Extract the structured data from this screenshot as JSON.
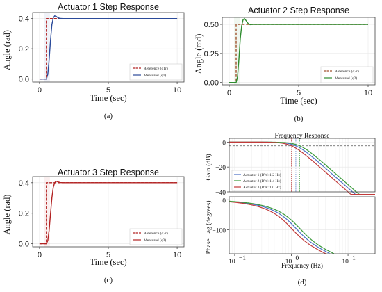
{
  "chart_data": [
    {
      "id": "a",
      "type": "line",
      "title": "Actuator 1 Step Response",
      "xlabel": "Time (sec)",
      "ylabel": "Angle (rad)",
      "xlim": [
        -0.5,
        10.5
      ],
      "ylim": [
        -0.02,
        0.44
      ],
      "xticks": [
        0,
        5,
        10
      ],
      "yticks": [
        0.0,
        0.2,
        0.4
      ],
      "ytick_labels": [
        "0.0",
        "0.2",
        "0.4"
      ],
      "step_time": 0.5,
      "caption": "(a)",
      "series": [
        {
          "name": "Reference (q1r)",
          "color": "#b22222",
          "dash": true,
          "x": [
            0,
            0.5,
            0.5,
            10
          ],
          "y": [
            0,
            0,
            0.4,
            0.4
          ]
        },
        {
          "name": "Measured (q1)",
          "color": "#2a4a9a",
          "dash": false,
          "x": [
            0,
            0.5,
            0.6,
            0.7,
            0.8,
            0.9,
            1.0,
            1.1,
            1.2,
            1.35,
            1.5,
            1.7,
            2.0,
            10
          ],
          "y": [
            0,
            0,
            0.03,
            0.13,
            0.26,
            0.36,
            0.405,
            0.418,
            0.415,
            0.405,
            0.401,
            0.4,
            0.4,
            0.4
          ]
        }
      ]
    },
    {
      "id": "b",
      "type": "line",
      "title": "Actuator 2 Step Response",
      "xlabel": "Time (sec)",
      "ylabel": "Angle (rad)",
      "xlim": [
        -0.5,
        10.5
      ],
      "ylim": [
        -0.02,
        0.56
      ],
      "xticks": [
        0,
        5,
        10
      ],
      "yticks": [
        0.0,
        0.25,
        0.5
      ],
      "ytick_labels": [
        "0.00",
        "0.25",
        "0.50"
      ],
      "step_time": 0.5,
      "caption": "(b)",
      "series": [
        {
          "name": "Reference (q2r)",
          "color": "#a0522d",
          "dash": true,
          "x": [
            0,
            0.5,
            0.5,
            10
          ],
          "y": [
            0,
            0,
            0.5,
            0.5
          ]
        },
        {
          "name": "Measured (q2)",
          "color": "#2e8b2e",
          "dash": false,
          "x": [
            0,
            0.5,
            0.6,
            0.7,
            0.8,
            0.9,
            1.0,
            1.1,
            1.2,
            1.35,
            1.5,
            1.7,
            2.0,
            10
          ],
          "y": [
            0,
            0,
            0.05,
            0.2,
            0.38,
            0.49,
            0.54,
            0.55,
            0.535,
            0.51,
            0.498,
            0.5,
            0.5,
            0.5
          ]
        }
      ]
    },
    {
      "id": "c",
      "type": "line",
      "title": "Actuator 3 Step Response",
      "xlabel": "Time (sec)",
      "ylabel": "Angle (rad)",
      "xlim": [
        -0.5,
        10.5
      ],
      "ylim": [
        -0.02,
        0.44
      ],
      "xticks": [
        0,
        5,
        10
      ],
      "yticks": [
        0.0,
        0.2,
        0.4
      ],
      "ytick_labels": [
        "0.0",
        "0.2",
        "0.4"
      ],
      "step_time": 0.5,
      "caption": "(c)",
      "series": [
        {
          "name": "Reference (q3r)",
          "color": "#b22222",
          "dash": true,
          "x": [
            0,
            0.5,
            0.5,
            10
          ],
          "y": [
            0,
            0,
            0.4,
            0.4
          ]
        },
        {
          "name": "Measured (q3)",
          "color": "#b22222",
          "dash": false,
          "x": [
            0,
            0.5,
            0.6,
            0.7,
            0.8,
            0.9,
            1.0,
            1.1,
            1.2,
            1.35,
            1.5,
            1.7,
            2.0,
            10
          ],
          "y": [
            0,
            0,
            0.02,
            0.09,
            0.2,
            0.3,
            0.37,
            0.4,
            0.41,
            0.405,
            0.401,
            0.4,
            0.4,
            0.4
          ]
        }
      ]
    },
    {
      "id": "d",
      "type": "line",
      "title": "Frequency Response",
      "xlabel": "Frequency (Hz)",
      "xscale": "log",
      "xlim": [
        0.08,
        30
      ],
      "xticks": [
        0.1,
        1,
        10
      ],
      "xtick_labels": [
        "10",
        "10",
        "10"
      ],
      "xtick_exponents": [
        "−1",
        "0",
        "1"
      ],
      "caption": "(d)",
      "gain": {
        "ylabel": "Gain (dB)",
        "ylim": [
          -40,
          3
        ],
        "yticks": [
          0,
          -20,
          -40
        ],
        "ytick_labels": [
          "0",
          "−20",
          "−40"
        ],
        "ref_line_db": -3
      },
      "phase": {
        "ylabel": "Phase Lag (degrees)",
        "ylim": [
          -180,
          10
        ],
        "yticks": [
          0,
          -100
        ],
        "ytick_labels": [
          "0",
          "−100"
        ]
      },
      "legend_position": "lower-left",
      "series": [
        {
          "name": "Actuator 1 (BW: 1.2 Hz)",
          "color": "#4a6fc4",
          "bw": 1.2
        },
        {
          "name": "Actuator 2 (BW: 1.4 Hz)",
          "color": "#3a9a3a",
          "bw": 1.4
        },
        {
          "name": "Actuator 3 (BW: 1.0 Hz)",
          "color": "#c23a3a",
          "bw": 1.0
        }
      ]
    }
  ]
}
